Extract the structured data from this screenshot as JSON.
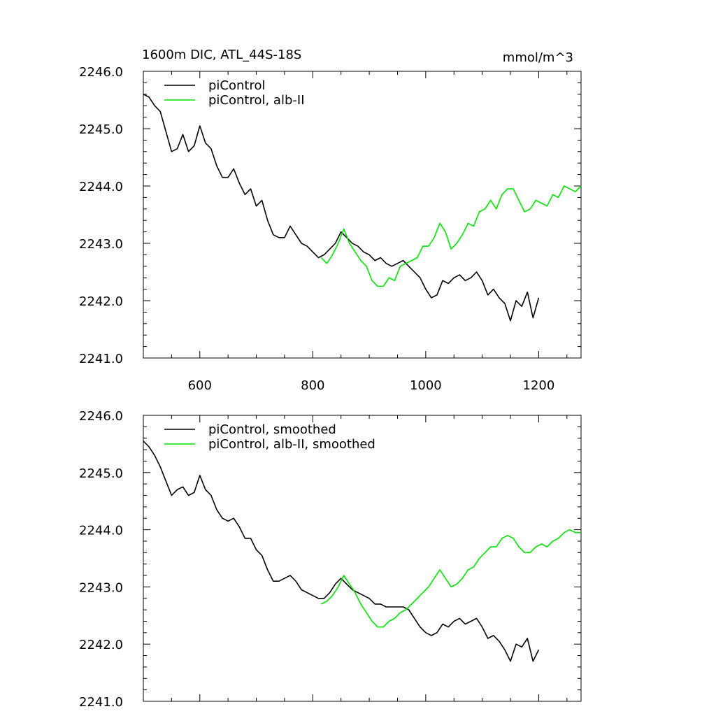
{
  "title_left": "1600m DIC, ATL_44S-18S",
  "title_right": "mmol/m^3",
  "colors": {
    "piControl": "#000000",
    "alb": "#00e400"
  },
  "chart_data": [
    {
      "type": "line",
      "xlim": [
        500,
        1275
      ],
      "ylim": [
        2241.0,
        2246.0
      ],
      "xticks": [
        600,
        800,
        1000,
        1200
      ],
      "xtick_labels": [
        "600",
        "800",
        "1000",
        "1200"
      ],
      "yticks": [
        2241.0,
        2242.0,
        2243.0,
        2244.0,
        2245.0,
        2246.0
      ],
      "ytick_labels": [
        "2241.0",
        "2242.0",
        "2243.0",
        "2244.0",
        "2245.0",
        "2246.0"
      ],
      "legend_position": "top-left",
      "series": [
        {
          "name": "piControl",
          "color": "#000000",
          "x": [
            500,
            510,
            520,
            530,
            540,
            550,
            560,
            570,
            580,
            590,
            600,
            610,
            620,
            630,
            640,
            650,
            660,
            670,
            680,
            690,
            700,
            710,
            720,
            730,
            740,
            750,
            760,
            770,
            780,
            790,
            800,
            810,
            820,
            830,
            840,
            850,
            860,
            870,
            880,
            890,
            900,
            910,
            920,
            930,
            940,
            950,
            960,
            970,
            980,
            990,
            1000,
            1010,
            1020,
            1030,
            1040,
            1050,
            1060,
            1070,
            1080,
            1090,
            1100,
            1110,
            1120,
            1130,
            1140,
            1150,
            1160,
            1170,
            1180,
            1190,
            1200
          ],
          "y": [
            2245.6,
            2245.55,
            2245.4,
            2245.3,
            2244.95,
            2244.6,
            2244.65,
            2244.9,
            2244.6,
            2244.7,
            2245.05,
            2244.75,
            2244.65,
            2244.35,
            2244.15,
            2244.15,
            2244.3,
            2244.05,
            2243.85,
            2243.95,
            2243.65,
            2243.75,
            2243.4,
            2243.15,
            2243.1,
            2243.1,
            2243.3,
            2243.15,
            2243.0,
            2242.95,
            2242.85,
            2242.75,
            2242.8,
            2242.9,
            2243.0,
            2243.2,
            2243.1,
            2243.0,
            2242.95,
            2242.85,
            2242.8,
            2242.7,
            2242.75,
            2242.65,
            2242.6,
            2242.65,
            2242.7,
            2242.6,
            2242.5,
            2242.4,
            2242.2,
            2242.05,
            2242.1,
            2242.35,
            2242.3,
            2242.4,
            2242.45,
            2242.35,
            2242.4,
            2242.5,
            2242.35,
            2242.1,
            2242.2,
            2242.05,
            2241.95,
            2241.65,
            2242.0,
            2241.9,
            2242.15,
            2241.7,
            2242.05
          ]
        },
        {
          "name": "piControl, alb-II",
          "color": "#00e400",
          "x": [
            815,
            825,
            835,
            845,
            855,
            865,
            875,
            885,
            895,
            905,
            915,
            925,
            935,
            945,
            955,
            965,
            975,
            985,
            995,
            1005,
            1015,
            1025,
            1035,
            1045,
            1055,
            1065,
            1075,
            1085,
            1095,
            1105,
            1115,
            1125,
            1135,
            1145,
            1155,
            1165,
            1175,
            1185,
            1195,
            1205,
            1215,
            1225,
            1235,
            1245,
            1255,
            1265,
            1275
          ],
          "y": [
            2242.75,
            2242.65,
            2242.8,
            2243.0,
            2243.25,
            2243.0,
            2242.85,
            2242.7,
            2242.6,
            2242.35,
            2242.25,
            2242.25,
            2242.4,
            2242.35,
            2242.6,
            2242.65,
            2242.7,
            2242.75,
            2242.95,
            2242.95,
            2243.1,
            2243.35,
            2243.2,
            2242.9,
            2243.0,
            2243.15,
            2243.35,
            2243.3,
            2243.55,
            2243.6,
            2243.75,
            2243.6,
            2243.85,
            2243.95,
            2243.95,
            2243.75,
            2243.55,
            2243.6,
            2243.75,
            2243.7,
            2243.65,
            2243.85,
            2243.8,
            2244.0,
            2243.95,
            2243.9,
            2244.0
          ]
        }
      ]
    },
    {
      "type": "line",
      "xlim": [
        500,
        1275
      ],
      "ylim": [
        2241.0,
        2246.0
      ],
      "xticks": [
        600,
        800,
        1000,
        1200
      ],
      "yticks": [
        2241.0,
        2242.0,
        2243.0,
        2244.0,
        2245.0,
        2246.0
      ],
      "ytick_labels": [
        "2241.0",
        "2242.0",
        "2243.0",
        "2244.0",
        "2245.0",
        "2246.0"
      ],
      "legend_position": "top-left",
      "series": [
        {
          "name": "piControl, smoothed",
          "color": "#000000",
          "x": [
            500,
            510,
            520,
            530,
            540,
            550,
            560,
            570,
            580,
            590,
            600,
            610,
            620,
            630,
            640,
            650,
            660,
            670,
            680,
            690,
            700,
            710,
            720,
            730,
            740,
            750,
            760,
            770,
            780,
            790,
            800,
            810,
            820,
            830,
            840,
            850,
            860,
            870,
            880,
            890,
            900,
            910,
            920,
            930,
            940,
            950,
            960,
            970,
            980,
            990,
            1000,
            1010,
            1020,
            1030,
            1040,
            1050,
            1060,
            1070,
            1080,
            1090,
            1100,
            1110,
            1120,
            1130,
            1140,
            1150,
            1160,
            1170,
            1180,
            1190,
            1200
          ],
          "y": [
            2245.55,
            2245.45,
            2245.3,
            2245.1,
            2244.85,
            2244.6,
            2244.7,
            2244.75,
            2244.6,
            2244.65,
            2244.95,
            2244.7,
            2244.6,
            2244.35,
            2244.2,
            2244.15,
            2244.2,
            2244.05,
            2243.85,
            2243.85,
            2243.65,
            2243.55,
            2243.3,
            2243.1,
            2243.1,
            2243.15,
            2243.2,
            2243.1,
            2242.95,
            2242.9,
            2242.85,
            2242.8,
            2242.8,
            2242.9,
            2243.05,
            2243.15,
            2243.05,
            2242.95,
            2242.9,
            2242.85,
            2242.8,
            2242.7,
            2242.7,
            2242.65,
            2242.65,
            2242.65,
            2242.65,
            2242.6,
            2242.45,
            2242.3,
            2242.2,
            2242.15,
            2242.2,
            2242.35,
            2242.3,
            2242.4,
            2242.45,
            2242.35,
            2242.4,
            2242.45,
            2242.3,
            2242.1,
            2242.15,
            2242.05,
            2241.9,
            2241.7,
            2242.0,
            2241.95,
            2242.1,
            2241.7,
            2241.9
          ]
        },
        {
          "name": "piControl, alb-II, smoothed",
          "color": "#00e400",
          "x": [
            815,
            825,
            835,
            845,
            855,
            865,
            875,
            885,
            895,
            905,
            915,
            925,
            935,
            945,
            955,
            965,
            975,
            985,
            995,
            1005,
            1015,
            1025,
            1035,
            1045,
            1055,
            1065,
            1075,
            1085,
            1095,
            1105,
            1115,
            1125,
            1135,
            1145,
            1155,
            1165,
            1175,
            1185,
            1195,
            1205,
            1215,
            1225,
            1235,
            1245,
            1255,
            1265,
            1275
          ],
          "y": [
            2242.7,
            2242.75,
            2242.85,
            2243.0,
            2243.2,
            2243.05,
            2242.9,
            2242.7,
            2242.55,
            2242.4,
            2242.3,
            2242.3,
            2242.4,
            2242.45,
            2242.55,
            2242.6,
            2242.7,
            2242.8,
            2242.9,
            2243.0,
            2243.15,
            2243.3,
            2243.15,
            2243.0,
            2243.05,
            2243.15,
            2243.3,
            2243.35,
            2243.5,
            2243.6,
            2243.7,
            2243.7,
            2243.85,
            2243.9,
            2243.85,
            2243.7,
            2243.6,
            2243.6,
            2243.7,
            2243.75,
            2243.7,
            2243.8,
            2243.85,
            2243.95,
            2244.0,
            2243.95,
            2243.95
          ]
        }
      ]
    }
  ]
}
